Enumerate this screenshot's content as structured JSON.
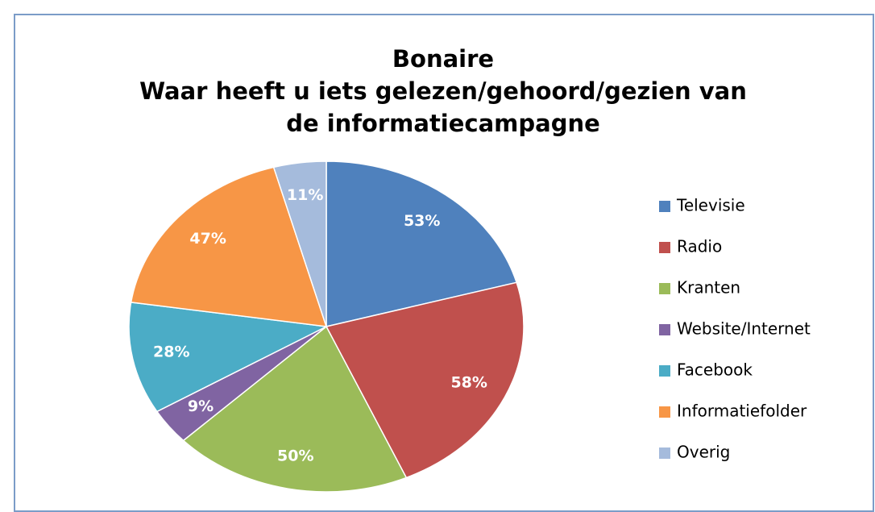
{
  "chart_data": {
    "type": "pie",
    "title": [
      "Bonaire",
      "Waar heeft u iets gelezen/gehoord/gezien van",
      "de informatiecampagne"
    ],
    "categories": [
      "Televisie",
      "Radio",
      "Kranten",
      "Website/Internet",
      "Facebook",
      "Informatiefolder",
      "Overig"
    ],
    "values": [
      53,
      58,
      50,
      9,
      28,
      47,
      11
    ],
    "value_labels": [
      "53%",
      "58%",
      "50%",
      "9%",
      "28%",
      "47%",
      "11%"
    ],
    "colors": [
      "#4f81bd",
      "#c0504d",
      "#9bbb59",
      "#8064a2",
      "#4bacc6",
      "#f79646",
      "#a5bbdc"
    ],
    "legend": "right"
  }
}
